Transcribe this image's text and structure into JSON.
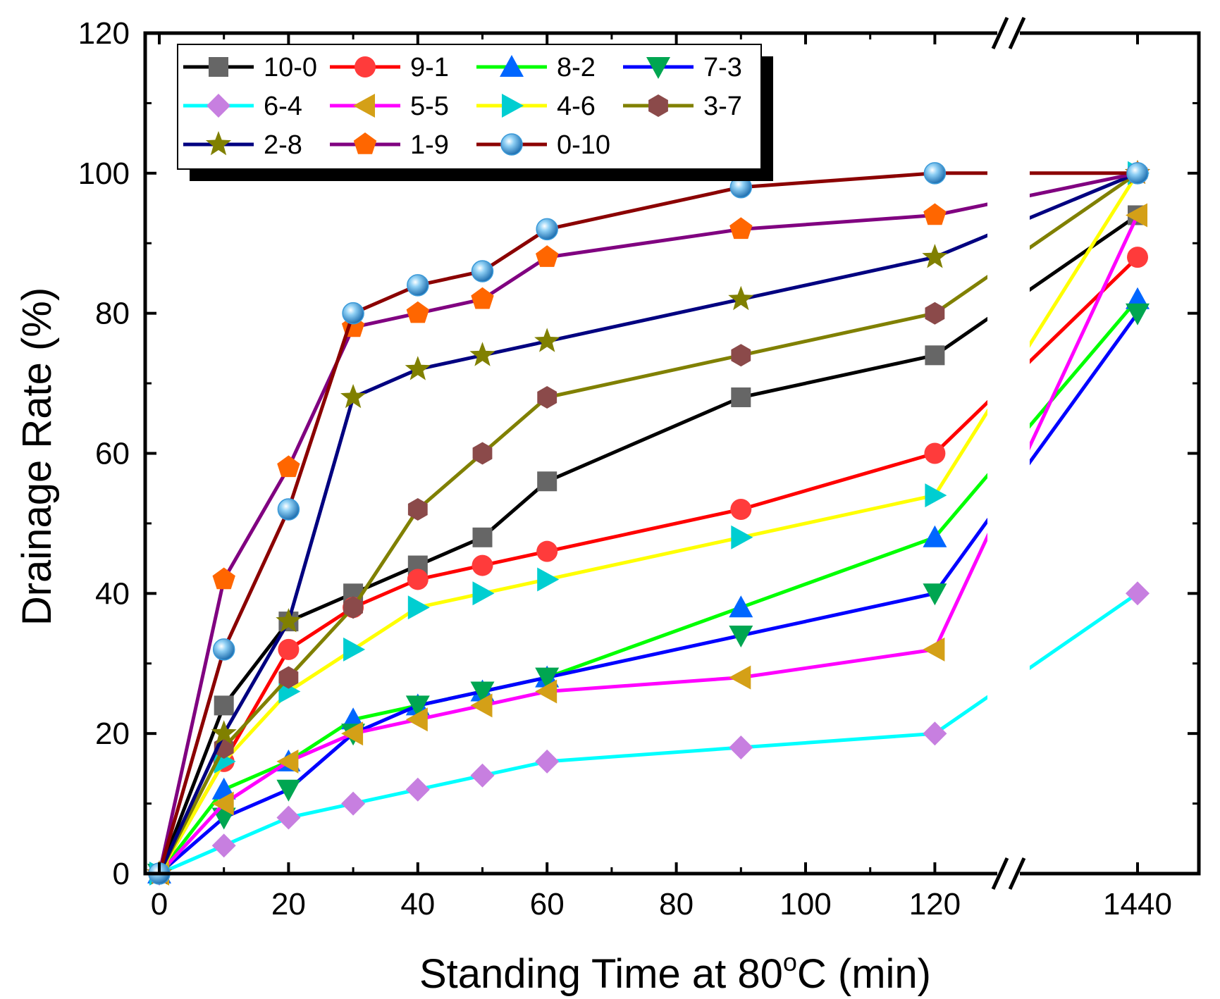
{
  "chart_data": {
    "type": "line",
    "xlabel": "Standing Time at 80",
    "xlabel_sup": "o",
    "xlabel_tail": "C (min)",
    "ylabel": "Drainage Rate (%)",
    "ylim": [
      0,
      120
    ],
    "y_ticks": [
      "0",
      "20",
      "40",
      "60",
      "80",
      "100",
      "120"
    ],
    "x_ticks": [
      "0",
      "20",
      "40",
      "60",
      "80",
      "100",
      "120",
      "1440"
    ],
    "axis_break": "between 120 and 1440",
    "x": [
      0,
      10,
      20,
      30,
      40,
      50,
      60,
      90,
      120,
      1440
    ],
    "legend_location": "top-left",
    "series": [
      {
        "name": "10-0",
        "color": "#000000",
        "marker": "square",
        "marker_color": "#666666",
        "values": [
          0,
          24,
          36,
          40,
          44,
          48,
          56,
          68,
          74,
          94
        ]
      },
      {
        "name": "9-1",
        "color": "#FF0000",
        "marker": "circle",
        "marker_color": "#FF3B3B",
        "values": [
          0,
          16,
          32,
          38,
          42,
          44,
          46,
          52,
          60,
          88
        ]
      },
      {
        "name": "8-2",
        "color": "#00FF00",
        "marker": "triangle-up",
        "marker_color": "#0066FF",
        "values": [
          0,
          12,
          16,
          22,
          24,
          26,
          28,
          38,
          48,
          82
        ]
      },
      {
        "name": "7-3",
        "color": "#0000FF",
        "marker": "triangle-down",
        "marker_color": "#00A651",
        "values": [
          0,
          8,
          12,
          20,
          24,
          26,
          28,
          34,
          40,
          80
        ]
      },
      {
        "name": "6-4",
        "color": "#00FFFF",
        "marker": "diamond",
        "marker_color": "#C77FE0",
        "values": [
          0,
          4,
          8,
          10,
          12,
          14,
          16,
          18,
          20,
          40
        ]
      },
      {
        "name": "5-5",
        "color": "#FF00FF",
        "marker": "triangle-left",
        "marker_color": "#D4A017",
        "values": [
          0,
          10,
          16,
          20,
          22,
          24,
          26,
          28,
          32,
          94
        ]
      },
      {
        "name": "4-6",
        "color": "#FFFF00",
        "marker": "triangle-right",
        "marker_color": "#00CED1",
        "values": [
          0,
          16,
          26,
          32,
          38,
          40,
          42,
          48,
          54,
          100
        ]
      },
      {
        "name": "3-7",
        "color": "#808000",
        "marker": "hexagon",
        "marker_color": "#8B4A4A",
        "values": [
          0,
          18,
          28,
          38,
          52,
          60,
          68,
          74,
          80,
          100
        ]
      },
      {
        "name": "2-8",
        "color": "#000080",
        "marker": "star",
        "marker_color": "#808000",
        "values": [
          0,
          20,
          36,
          68,
          72,
          74,
          76,
          82,
          88,
          100
        ]
      },
      {
        "name": "1-9",
        "color": "#800080",
        "marker": "pentagon",
        "marker_color": "#FF6600",
        "values": [
          0,
          42,
          58,
          78,
          80,
          82,
          88,
          92,
          94,
          100
        ]
      },
      {
        "name": "0-10",
        "color": "#8B0000",
        "marker": "sphere",
        "marker_color": "#3A9AD9",
        "values": [
          0,
          32,
          52,
          80,
          84,
          86,
          92,
          98,
          100,
          100
        ]
      }
    ]
  }
}
